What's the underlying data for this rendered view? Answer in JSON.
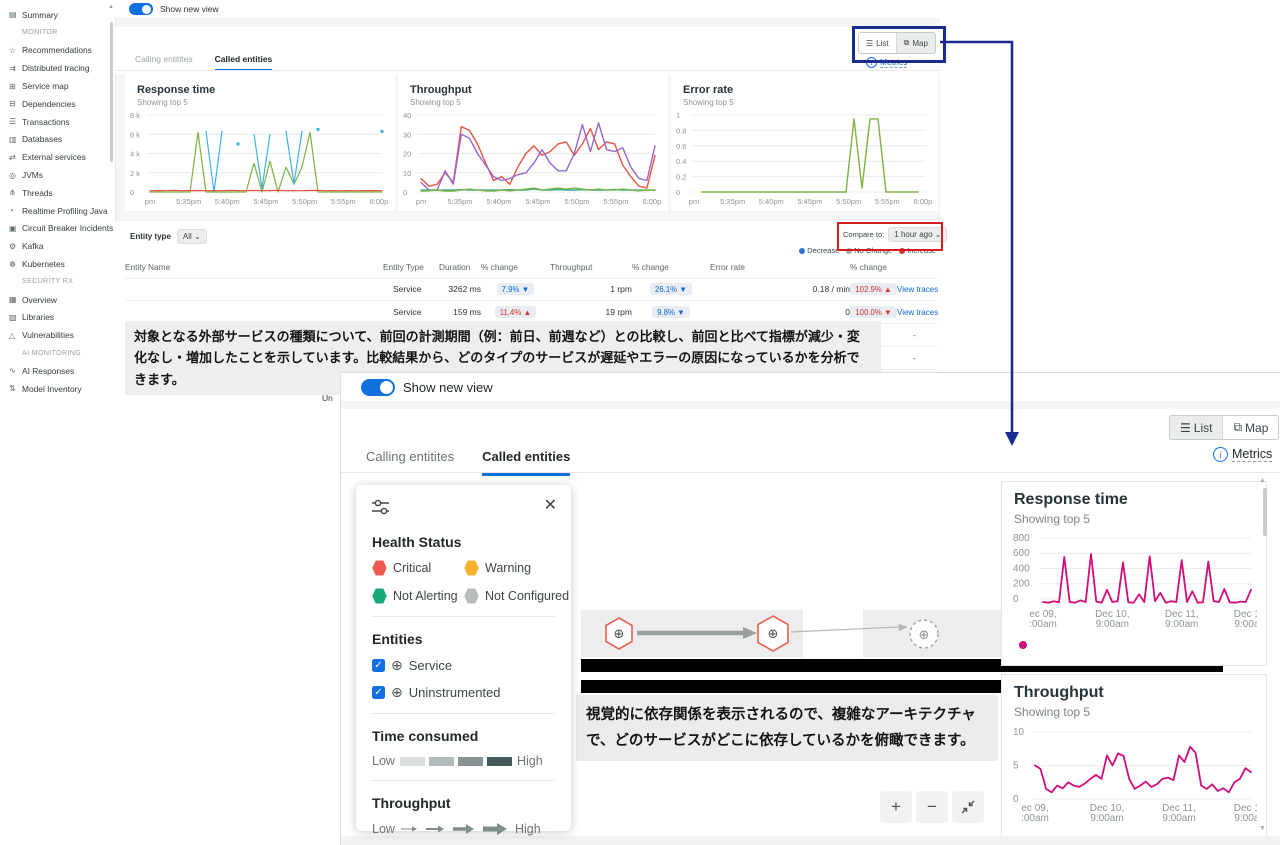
{
  "colors": {
    "accent_blue": "#1070e0",
    "link_blue": "#0b6acb",
    "annotation_navy": "#1c2b8f",
    "annotation_red": "#d41e1e",
    "decrease": "#2f6fd3",
    "no_change": "#9aa5a5",
    "increase": "#d2342a",
    "magenta_series": "#cf0d7c"
  },
  "sidebar": {
    "items": [
      {
        "label": "Summary",
        "icon": "▤",
        "kind": "item"
      },
      {
        "label": "MONITOR",
        "icon": "",
        "kind": "header"
      },
      {
        "label": "Recommendations",
        "icon": "☆",
        "kind": "item"
      },
      {
        "label": "Distributed tracing",
        "icon": "⇉",
        "kind": "item"
      },
      {
        "label": "Service map",
        "icon": "⊞",
        "kind": "item"
      },
      {
        "label": "Dependencies",
        "icon": "⊟",
        "kind": "item"
      },
      {
        "label": "Transactions",
        "icon": "☰",
        "kind": "item"
      },
      {
        "label": "Databases",
        "icon": "▥",
        "kind": "item"
      },
      {
        "label": "External services",
        "icon": "⇄",
        "kind": "item",
        "state": "active"
      },
      {
        "label": "JVMs",
        "icon": "◎",
        "kind": "item"
      },
      {
        "label": "Threads",
        "icon": "⋔",
        "kind": "item"
      },
      {
        "label": "Realtime Profiling Java",
        "icon": "◔",
        "kind": "item"
      },
      {
        "label": "Circuit Breaker Incidents",
        "icon": "▣",
        "kind": "item"
      },
      {
        "label": "Kafka",
        "icon": "⚙",
        "kind": "item"
      },
      {
        "label": "Kubernetes",
        "icon": "☸",
        "kind": "item"
      },
      {
        "label": "SECURITY RX",
        "icon": "",
        "kind": "header"
      },
      {
        "label": "Overview",
        "icon": "▦",
        "kind": "item"
      },
      {
        "label": "Libraries",
        "icon": "▨",
        "kind": "item"
      },
      {
        "label": "Vulnerabilities",
        "icon": "△",
        "kind": "item"
      },
      {
        "label": "AI MONITORING",
        "icon": "",
        "kind": "header"
      },
      {
        "label": "AI Responses",
        "icon": "∿",
        "kind": "item"
      },
      {
        "label": "Model Inventory",
        "icon": "⇅",
        "kind": "item"
      }
    ]
  },
  "top_view": {
    "toggle_label": "Show new view",
    "view_switch": {
      "list": "List",
      "map": "Map"
    },
    "metrics_label": "Metrics",
    "tabs": [
      {
        "label": "Calling entitites",
        "state": "inactive"
      },
      {
        "label": "Called entities",
        "state": "active"
      }
    ],
    "filter": {
      "label": "Entity type",
      "value": "All ⌄"
    },
    "compare": {
      "label": "Compare to:",
      "value": "1 hour ago ⌄"
    },
    "legend": [
      {
        "label": "Decrease",
        "color": "#2f6fd3"
      },
      {
        "label": "No Change",
        "color": "#9aa5a5"
      },
      {
        "label": "Increase",
        "color": "#d2342a"
      }
    ],
    "table": {
      "columns": [
        "Entity Name",
        "Entity Type",
        "Duration",
        "% change",
        "Throughput",
        "% change",
        "Error rate",
        "% change",
        ""
      ],
      "rows": [
        {
          "entity_name": "",
          "entity_type": "Service",
          "duration": "3262 ms",
          "duration_change": {
            "text": "7.9% ▼",
            "tone": "blue"
          },
          "throughput": "1 rpm",
          "throughput_change": {
            "text": "26.1% ▼",
            "tone": "blue"
          },
          "error_rate": "0.18 / min",
          "error_change": {
            "text": "102.9% ▲",
            "tone": "red"
          },
          "action": "View traces",
          "action_tone": "link"
        },
        {
          "entity_name": "",
          "entity_type": "Service",
          "duration": "159 ms",
          "duration_change": {
            "text": "11.4% ▲",
            "tone": "red"
          },
          "throughput": "19 rpm",
          "throughput_change": {
            "text": "9.8% ▼",
            "tone": "blue"
          },
          "error_rate": "0",
          "error_change": {
            "text": "100.0% ▼",
            "tone": "red"
          },
          "action": "View traces",
          "action_tone": "link"
        },
        {
          "entity_name": "",
          "entity_type": "",
          "duration": "",
          "duration_change": {},
          "throughput": "",
          "throughput_change": {},
          "error_rate": "",
          "error_change": {},
          "action": "-",
          "action_tone": "dash"
        },
        {
          "entity_name": "",
          "entity_type": "",
          "duration": "",
          "duration_change": {},
          "throughput": "",
          "throughput_change": {},
          "error_rate": "",
          "error_change": {},
          "action": "-",
          "action_tone": "dash"
        }
      ],
      "cut_rows": [
        {
          "name_fragment": "Un"
        },
        {
          "name_fragment": "Un"
        }
      ]
    }
  },
  "bottom_view": {
    "toggle_label": "Show new view",
    "view_switch": {
      "list": "List",
      "map": "Map"
    },
    "metrics_label": "Metrics",
    "tabs": [
      {
        "label": "Calling entitites",
        "state": "inactive"
      },
      {
        "label": "Called entities",
        "state": "active"
      }
    ],
    "filter_panel": {
      "health_title": "Health Status",
      "health": [
        {
          "label": "Critical",
          "color": "#ec5b4e"
        },
        {
          "label": "Warning",
          "color": "#f3b32a"
        },
        {
          "label": "Not Alerting",
          "color": "#18a878"
        },
        {
          "label": "Not Configured",
          "color": "#b6bcbc"
        }
      ],
      "entities_title": "Entities",
      "entities": [
        {
          "label": "Service",
          "checked": "✓"
        },
        {
          "label": "Uninstrumented",
          "checked": "✓"
        }
      ],
      "time_title": "Time consumed",
      "time_swatches": [
        {
          "color": "#d9dddd"
        },
        {
          "color": "#b3bcbc"
        },
        {
          "color": "#879393"
        },
        {
          "color": "#46595a"
        }
      ],
      "throughput_title": "Throughput",
      "low_label": "Low",
      "high_label": "High"
    }
  },
  "annotations": {
    "list_note": "対象となる外部サービスの種類について、前回の計測期間（例：前日、前週など）との比較し、前回と比べて指標が減少・変化なし・増加したことを示しています。比較結果から、どのタイプのサービスが遅延やエラーの原因になっているかを分析できます。",
    "map_note": "視覚的に依存関係を表示されるので、複雑なアーキテクチャで、どのサービスがどこに依存しているかを俯瞰できます。"
  },
  "chart_data": [
    {
      "type": "line",
      "title": "Response time",
      "subtitle": "Showing top 5",
      "ylim": [
        0,
        8000
      ],
      "yticks": [
        {
          "v": 8000,
          "label": "8 k"
        },
        {
          "v": 6000,
          "label": "6 k"
        },
        {
          "v": 4000,
          "label": "4 k"
        },
        {
          "v": 2000,
          "label": "2 k"
        },
        {
          "v": 0,
          "label": "0"
        }
      ],
      "xticks": [
        "pm",
        "5:35pm",
        "5:40pm",
        "5:45pm",
        "5:50pm",
        "5:55pm",
        "6:00pm"
      ],
      "stroke": 1.2,
      "series": [
        {
          "name": "green-service",
          "color": "#7cb342",
          "values": [
            0,
            0,
            0,
            0,
            0,
            0,
            6200,
            0,
            0,
            0,
            0,
            0,
            0,
            3000,
            0,
            3200,
            0,
            2600,
            800,
            2600,
            6200,
            0,
            0,
            0,
            0,
            0,
            0,
            0,
            0,
            0
          ]
        },
        {
          "name": "blue-service",
          "color": "#3fb3e8",
          "values": [
            null,
            null,
            null,
            null,
            null,
            null,
            null,
            6300,
            0,
            6300,
            null,
            5000,
            null,
            6000,
            400,
            6000,
            null,
            6300,
            900,
            6300,
            null,
            6500,
            null,
            null,
            null,
            null,
            null,
            null,
            null,
            6300
          ]
        },
        {
          "name": "red-service",
          "color": "#e8543f",
          "values": [
            120,
            160,
            130,
            170,
            140,
            150,
            160,
            130,
            150,
            140,
            170,
            150,
            130,
            160,
            140,
            150,
            170,
            140,
            150,
            130,
            160,
            170,
            140,
            150,
            130,
            150,
            140,
            160,
            150,
            140
          ]
        }
      ]
    },
    {
      "type": "line",
      "title": "Throughput",
      "subtitle": "Showing top 5",
      "ylim": [
        0,
        40
      ],
      "yticks": [
        {
          "v": 40,
          "label": "40"
        },
        {
          "v": 30,
          "label": "30"
        },
        {
          "v": 20,
          "label": "20"
        },
        {
          "v": 10,
          "label": "10"
        },
        {
          "v": 0,
          "label": "0"
        }
      ],
      "xticks": [
        "pm",
        "5:35pm",
        "5:40pm",
        "5:45pm",
        "5:50pm",
        "5:55pm",
        "6:00pm"
      ],
      "stroke": 1.4,
      "series": [
        {
          "name": "red-service",
          "color": "#e8543f",
          "values": [
            7,
            3,
            4,
            10,
            5,
            34,
            32,
            25,
            15,
            6,
            8,
            4,
            13,
            20,
            24,
            19,
            21,
            25,
            26,
            19,
            25,
            33,
            22,
            26,
            25,
            14,
            8,
            3,
            2,
            19
          ]
        },
        {
          "name": "purple-service",
          "color": "#9467d3",
          "values": [
            5,
            1,
            1,
            11,
            4,
            30,
            28,
            20,
            14,
            8,
            6,
            7,
            9,
            10,
            15,
            22,
            15,
            11,
            11,
            20,
            35,
            21,
            36,
            22,
            21,
            23,
            13,
            7,
            6,
            24
          ]
        },
        {
          "name": "teal-service",
          "color": "#2ea89b",
          "values": [
            1,
            1,
            1,
            1,
            1,
            1.2,
            1,
            1,
            1,
            1,
            1,
            1.2,
            1,
            1,
            1.5,
            1,
            1,
            1.3,
            1,
            1,
            1.2,
            1,
            1,
            1,
            1.3,
            1,
            1,
            1,
            1,
            1
          ]
        },
        {
          "name": "green-service",
          "color": "#7cb342",
          "values": [
            0.5,
            0.6,
            1,
            0.5,
            0.5,
            1,
            1.5,
            1,
            0.6,
            0.5,
            1,
            0.6,
            1,
            1.5,
            2,
            1,
            1.5,
            2,
            1.5,
            2,
            1.5,
            1,
            1.5,
            1,
            1,
            1.5,
            1,
            0.6,
            1,
            1
          ]
        }
      ]
    },
    {
      "type": "line",
      "title": "Error rate",
      "subtitle": "Showing top 5",
      "ylim": [
        0,
        1
      ],
      "yticks": [
        {
          "v": 1,
          "label": "1"
        },
        {
          "v": 0.8,
          "label": "0.8"
        },
        {
          "v": 0.6,
          "label": "0.6"
        },
        {
          "v": 0.4,
          "label": "0.4"
        },
        {
          "v": 0.2,
          "label": "0.2"
        },
        {
          "v": 0,
          "label": "0"
        }
      ],
      "xticks": [
        "pm",
        "5:35pm",
        "5:40pm",
        "5:45pm",
        "5:50pm",
        "5:55pm",
        "6:00pm"
      ],
      "stroke": 1.4,
      "series": [
        {
          "name": "green-service",
          "color": "#7cb342",
          "values": [
            null,
            0,
            0,
            0,
            0,
            0,
            0,
            0,
            0,
            0,
            0,
            0,
            0,
            0,
            0,
            0,
            0,
            0,
            0,
            0,
            0.95,
            0.05,
            0.95,
            0.95,
            0,
            0,
            0,
            0,
            0,
            null
          ]
        }
      ]
    },
    {
      "type": "line",
      "title": "Response time",
      "subtitle": "Showing top 5",
      "ylim": [
        -80,
        800
      ],
      "yticks": [
        {
          "v": 800,
          "label": "800"
        },
        {
          "v": 600,
          "label": "600"
        },
        {
          "v": 400,
          "label": "400"
        },
        {
          "v": 200,
          "label": "200"
        },
        {
          "v": 0,
          "label": "0"
        }
      ],
      "xticks": [
        "ec 09,\n:00am",
        "Dec 10,\n9:00am",
        "Dec 11,\n9:00am",
        "Dec 12,\n9:00am"
      ],
      "stroke": 1.8,
      "legend_dot_color": "#cf0d7c",
      "series": [
        {
          "name": "magenta-service",
          "color": "#cf0d7c",
          "values": [
            -40,
            -50,
            -30,
            -45,
            550,
            -40,
            -50,
            -20,
            -40,
            590,
            -35,
            -50,
            120,
            -40,
            -30,
            480,
            -45,
            -50,
            60,
            -40,
            560,
            -30,
            80,
            -50,
            -30,
            -40,
            510,
            -40,
            100,
            -50,
            -45,
            490,
            -30,
            -40,
            130,
            -45,
            -50,
            -35,
            -40,
            120
          ]
        }
      ]
    },
    {
      "type": "line",
      "title": "Throughput",
      "subtitle": "Showing top 5",
      "ylim": [
        0,
        10
      ],
      "yticks": [
        {
          "v": 10,
          "label": "10"
        },
        {
          "v": 5,
          "label": "5"
        },
        {
          "v": 0,
          "label": "0"
        }
      ],
      "xticks": [
        "ec 09,\n:00am",
        "Dec 10,\n9:00am",
        "Dec 11,\n9:00am",
        "Dec 12,\n9:00am"
      ],
      "stroke": 1.8,
      "series": [
        {
          "name": "magenta-service",
          "color": "#cf0d7c",
          "values": [
            5,
            4.5,
            1.5,
            1,
            2,
            1.6,
            2.5,
            2,
            1.8,
            2.3,
            3,
            3.6,
            3,
            6.5,
            5,
            6.8,
            6.4,
            3,
            1.5,
            2,
            2.6,
            1.8,
            2.2,
            3,
            3.2,
            2.8,
            6.5,
            5.5,
            7.8,
            6.9,
            2,
            1.5,
            2.2,
            1.2,
            1.6,
            1,
            2.5,
            3,
            4.6,
            4
          ]
        }
      ]
    }
  ]
}
